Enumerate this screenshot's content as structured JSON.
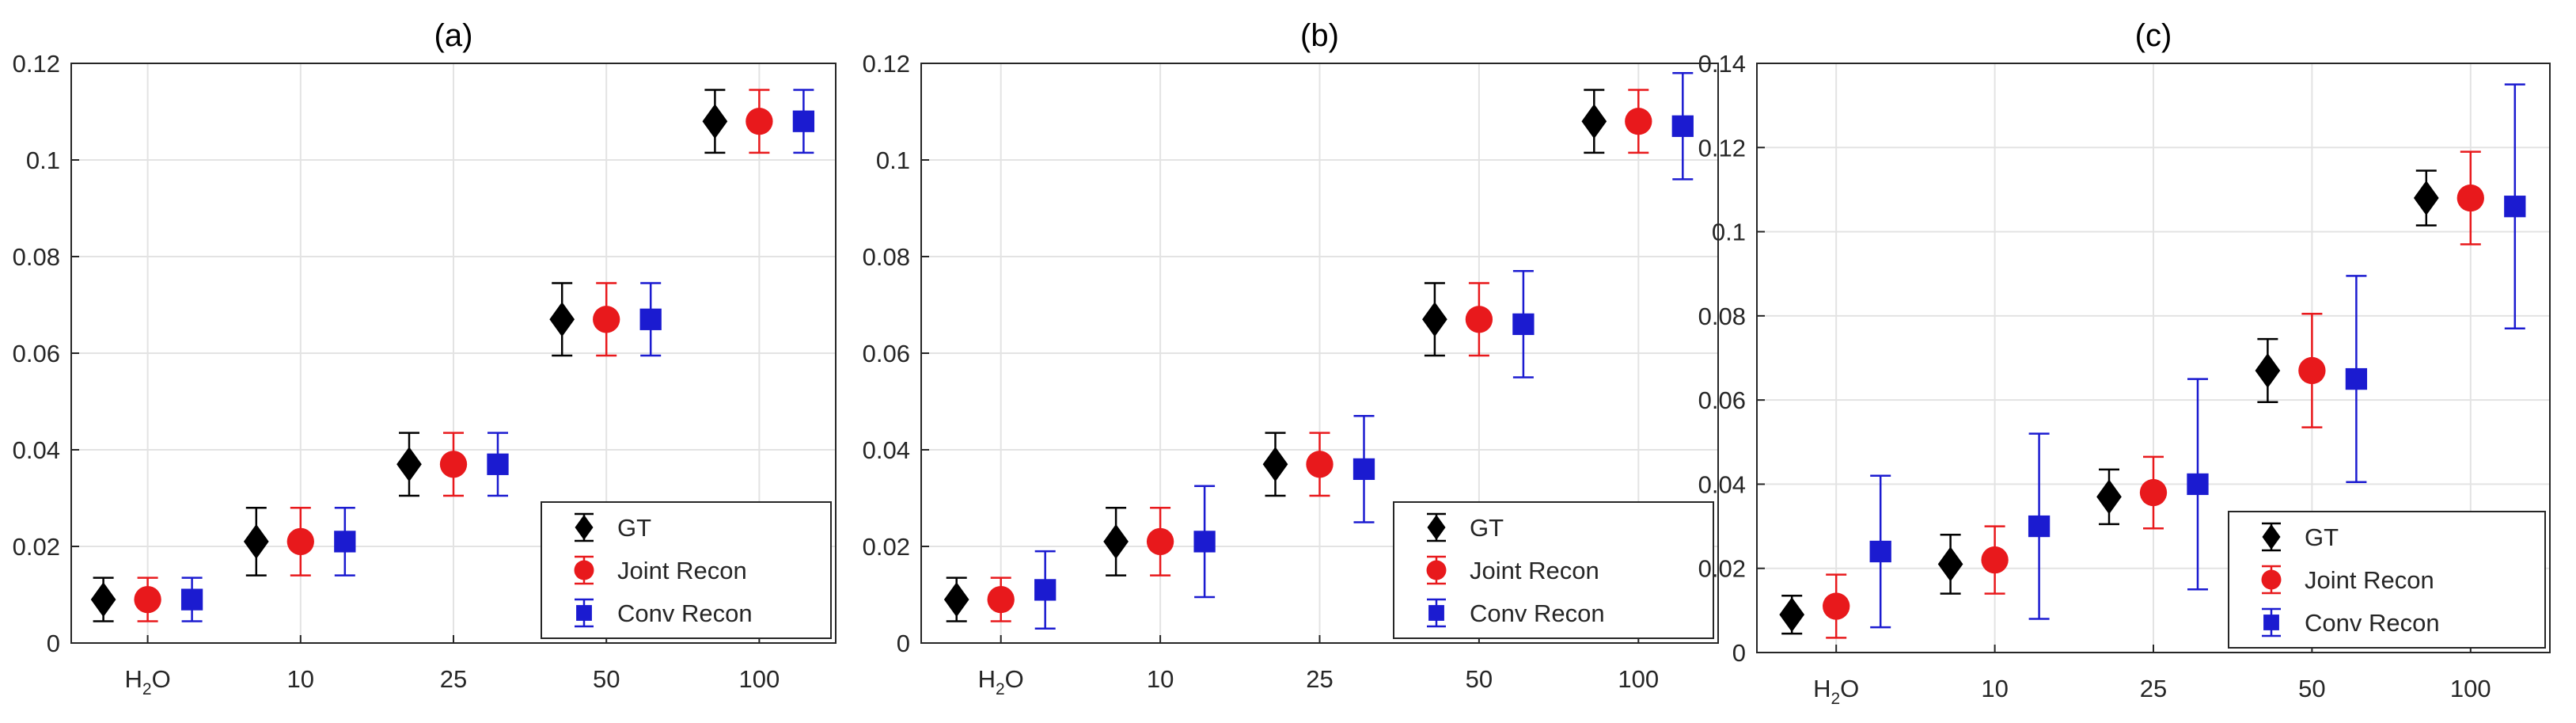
{
  "chart_data": [
    {
      "type": "scatter",
      "title": "(a)",
      "xlabel": "",
      "ylabel": "",
      "categories": [
        "H2O",
        "10",
        "25",
        "50",
        "100"
      ],
      "category_labels": [
        {
          "main": "H",
          "sub": "2",
          "tail": "O"
        },
        {
          "main": "10"
        },
        {
          "main": "25"
        },
        {
          "main": "50"
        },
        {
          "main": "100"
        }
      ],
      "ylim": [
        0,
        0.12
      ],
      "yticks": [
        "0",
        "0.02",
        "0.04",
        "0.06",
        "0.08",
        "0.1",
        "0.12"
      ],
      "grid": true,
      "legend_position": "lower-right",
      "series": [
        {
          "name": "GT",
          "marker": "diamond",
          "color": "#000000",
          "values": [
            0.009,
            0.021,
            0.037,
            0.067,
            0.108
          ],
          "error": [
            0.0045,
            0.007,
            0.0065,
            0.0075,
            0.0065
          ]
        },
        {
          "name": "Joint Recon",
          "marker": "circle",
          "color": "#e8191c",
          "values": [
            0.009,
            0.021,
            0.037,
            0.067,
            0.108
          ],
          "error": [
            0.0045,
            0.007,
            0.0065,
            0.0075,
            0.0065
          ]
        },
        {
          "name": "Conv Recon",
          "marker": "square",
          "color": "#1b1bd0",
          "values": [
            0.009,
            0.021,
            0.037,
            0.067,
            0.108
          ],
          "error": [
            0.0045,
            0.007,
            0.0065,
            0.0075,
            0.0065
          ]
        }
      ]
    },
    {
      "type": "scatter",
      "title": "(b)",
      "xlabel": "",
      "ylabel": "",
      "categories": [
        "H2O",
        "10",
        "25",
        "50",
        "100"
      ],
      "category_labels": [
        {
          "main": "H",
          "sub": "2",
          "tail": "O"
        },
        {
          "main": "10"
        },
        {
          "main": "25"
        },
        {
          "main": "50"
        },
        {
          "main": "100"
        }
      ],
      "ylim": [
        0,
        0.12
      ],
      "yticks": [
        "0",
        "0.02",
        "0.04",
        "0.06",
        "0.08",
        "0.1",
        "0.12"
      ],
      "grid": true,
      "legend_position": "lower-right",
      "series": [
        {
          "name": "GT",
          "marker": "diamond",
          "color": "#000000",
          "values": [
            0.009,
            0.021,
            0.037,
            0.067,
            0.108
          ],
          "error": [
            0.0045,
            0.007,
            0.0065,
            0.0075,
            0.0065
          ]
        },
        {
          "name": "Joint Recon",
          "marker": "circle",
          "color": "#e8191c",
          "values": [
            0.009,
            0.021,
            0.037,
            0.067,
            0.108
          ],
          "error": [
            0.0045,
            0.007,
            0.0065,
            0.0075,
            0.0065
          ]
        },
        {
          "name": "Conv Recon",
          "marker": "square",
          "color": "#1b1bd0",
          "values": [
            0.011,
            0.021,
            0.036,
            0.066,
            0.107
          ],
          "error": [
            0.008,
            0.0115,
            0.011,
            0.011,
            0.011
          ]
        }
      ]
    },
    {
      "type": "scatter",
      "title": "(c)",
      "xlabel": "",
      "ylabel": "",
      "categories": [
        "H2O",
        "10",
        "25",
        "50",
        "100"
      ],
      "category_labels": [
        {
          "main": "H",
          "sub": "2",
          "tail": "O"
        },
        {
          "main": "10"
        },
        {
          "main": "25"
        },
        {
          "main": "50"
        },
        {
          "main": "100"
        }
      ],
      "ylim": [
        0,
        0.14
      ],
      "yticks": [
        "0",
        "0.02",
        "0.04",
        "0.06",
        "0.08",
        "0.1",
        "0.12",
        "0.14"
      ],
      "grid": true,
      "legend_position": "lower-right",
      "series": [
        {
          "name": "GT",
          "marker": "diamond",
          "color": "#000000",
          "values": [
            0.009,
            0.021,
            0.037,
            0.067,
            0.108
          ],
          "error": [
            0.0045,
            0.007,
            0.0065,
            0.0075,
            0.0065
          ]
        },
        {
          "name": "Joint Recon",
          "marker": "circle",
          "color": "#e8191c",
          "values": [
            0.011,
            0.022,
            0.038,
            0.067,
            0.108
          ],
          "error": [
            0.0075,
            0.008,
            0.0085,
            0.0135,
            0.011
          ]
        },
        {
          "name": "Conv Recon",
          "marker": "square",
          "color": "#1b1bd0",
          "values": [
            0.024,
            0.03,
            0.04,
            0.065,
            0.106
          ],
          "error": [
            0.018,
            0.022,
            0.025,
            0.0245,
            0.029
          ]
        }
      ]
    }
  ]
}
